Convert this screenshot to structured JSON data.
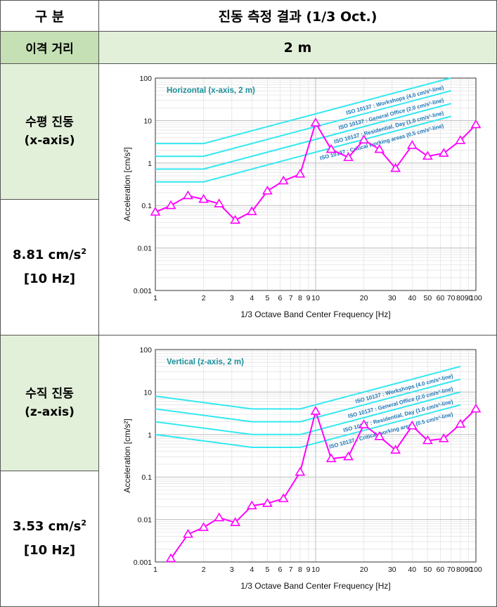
{
  "table": {
    "header_col1": "구  분",
    "header_col2": "진동 측정 결과 (1/3 Oct.)",
    "distance_label": "이격 거리",
    "distance_value": "2 m",
    "rows": [
      {
        "label_line1": "수평 진동",
        "label_line2": "(x-axis)",
        "value_main": "8.81 cm/s",
        "value_sup": "2",
        "value_freq": "[10 Hz]"
      },
      {
        "label_line1": "수직 진동",
        "label_line2": "(z-axis)",
        "value_main": "3.53 cm/s",
        "value_sup": "2",
        "value_freq": "[10 Hz]"
      }
    ]
  },
  "chart_data": [
    {
      "type": "line",
      "title": "Horizontal (x-axis, 2 m)",
      "xlabel": "1/3 Octave Band Center Frequency [Hz]",
      "ylabel": "Acceleration [cm/s²]",
      "xscale": "log",
      "yscale": "log",
      "xlim": [
        1,
        100
      ],
      "ylim": [
        0.001,
        100
      ],
      "xticks": [
        1,
        2,
        3,
        4,
        5,
        6,
        7,
        8,
        9,
        10,
        20,
        30,
        40,
        50,
        60,
        70,
        80,
        90,
        100
      ],
      "xticklabels": [
        "1",
        "2",
        "3",
        "4",
        "5",
        "6",
        "7",
        "8",
        "9",
        "10",
        "20",
        "30",
        "40",
        "50",
        "60",
        "70",
        "80",
        "90",
        "100"
      ],
      "yticks": [
        0.001,
        0.01,
        0.1,
        1,
        10,
        100
      ],
      "yticklabels": [
        "0.001",
        "0.01",
        "0.1",
        "1",
        "10",
        "100"
      ],
      "grid": true,
      "series": [
        {
          "name": "Measured",
          "color": "#ff00ff",
          "marker": "triangle",
          "x": [
            1,
            1.25,
            1.6,
            2,
            2.5,
            3.15,
            4,
            5,
            6.3,
            8,
            10,
            12.5,
            16,
            20,
            25,
            31.5,
            40,
            50,
            63,
            80,
            100
          ],
          "y": [
            0.07,
            0.1,
            0.17,
            0.14,
            0.11,
            0.045,
            0.072,
            0.22,
            0.38,
            0.55,
            8.81,
            2.1,
            1.35,
            3.5,
            2.1,
            0.75,
            2.6,
            1.45,
            1.7,
            3.4,
            8.0
          ]
        }
      ],
      "criteria": [
        {
          "name": "ISO 10137 : Workshops (4.0 cm/s²-line)",
          "color": "#33e8f0",
          "base": 2.88
        },
        {
          "name": "ISO 10137 : General Office (2.0 cm/s²-line)",
          "color": "#33e8f0",
          "base": 1.44
        },
        {
          "name": "ISO 10137 : Residential, Day (1.0 cm/s²-line)",
          "color": "#33e8f0",
          "base": 0.72
        },
        {
          "name": "ISO 10137 : Critical working areas (0.5 cm/s²-line)",
          "color": "#33e8f0",
          "base": 0.36
        }
      ]
    },
    {
      "type": "line",
      "title": "Vertical (z-axis, 2 m)",
      "xlabel": "1/3 Octave Band Center Frequency [Hz]",
      "ylabel": "Acceleration [cm/s²]",
      "xscale": "log",
      "yscale": "log",
      "xlim": [
        1,
        100
      ],
      "ylim": [
        0.001,
        100
      ],
      "xticks": [
        1,
        2,
        3,
        4,
        5,
        6,
        7,
        8,
        9,
        10,
        20,
        30,
        40,
        50,
        60,
        70,
        80,
        90,
        100
      ],
      "xticklabels": [
        "1",
        "2",
        "3",
        "4",
        "5",
        "6",
        "7",
        "8",
        "9",
        "10",
        "20",
        "30",
        "40",
        "50",
        "60",
        "70",
        "80",
        "90",
        "100"
      ],
      "yticks": [
        0.001,
        0.01,
        0.1,
        1,
        10,
        100
      ],
      "yticklabels": [
        "0.001",
        "0.01",
        "0.1",
        "1",
        "10",
        "100"
      ],
      "grid": true,
      "series": [
        {
          "name": "Measured",
          "color": "#ff00ff",
          "marker": "triangle",
          "x": [
            1.25,
            1.6,
            2,
            2.5,
            3.15,
            4,
            5,
            6.3,
            8,
            10,
            12.5,
            16,
            20,
            25,
            31.5,
            40,
            50,
            63,
            80,
            100
          ],
          "y": [
            0.0012,
            0.0045,
            0.0065,
            0.011,
            0.0085,
            0.021,
            0.024,
            0.031,
            0.13,
            3.53,
            0.27,
            0.3,
            1.7,
            0.9,
            0.43,
            1.6,
            0.72,
            0.8,
            1.75,
            4.0
          ]
        }
      ],
      "criteria": [
        {
          "name": "ISO 10137 : Workshops (4.0 cm/s²-line)",
          "color": "#33e8f0",
          "base": 4.0
        },
        {
          "name": "ISO 10137 : General Office (2.0 cm/s²-line)",
          "color": "#33e8f0",
          "base": 2.0
        },
        {
          "name": "ISO 10137 : Residential, Day (1.0 cm/s²-line)",
          "color": "#33e8f0",
          "base": 1.0
        },
        {
          "name": "ISO 10137 : Critical working areas (0.5 cm/s²-line)",
          "color": "#33e8f0",
          "base": 0.5
        }
      ]
    }
  ]
}
